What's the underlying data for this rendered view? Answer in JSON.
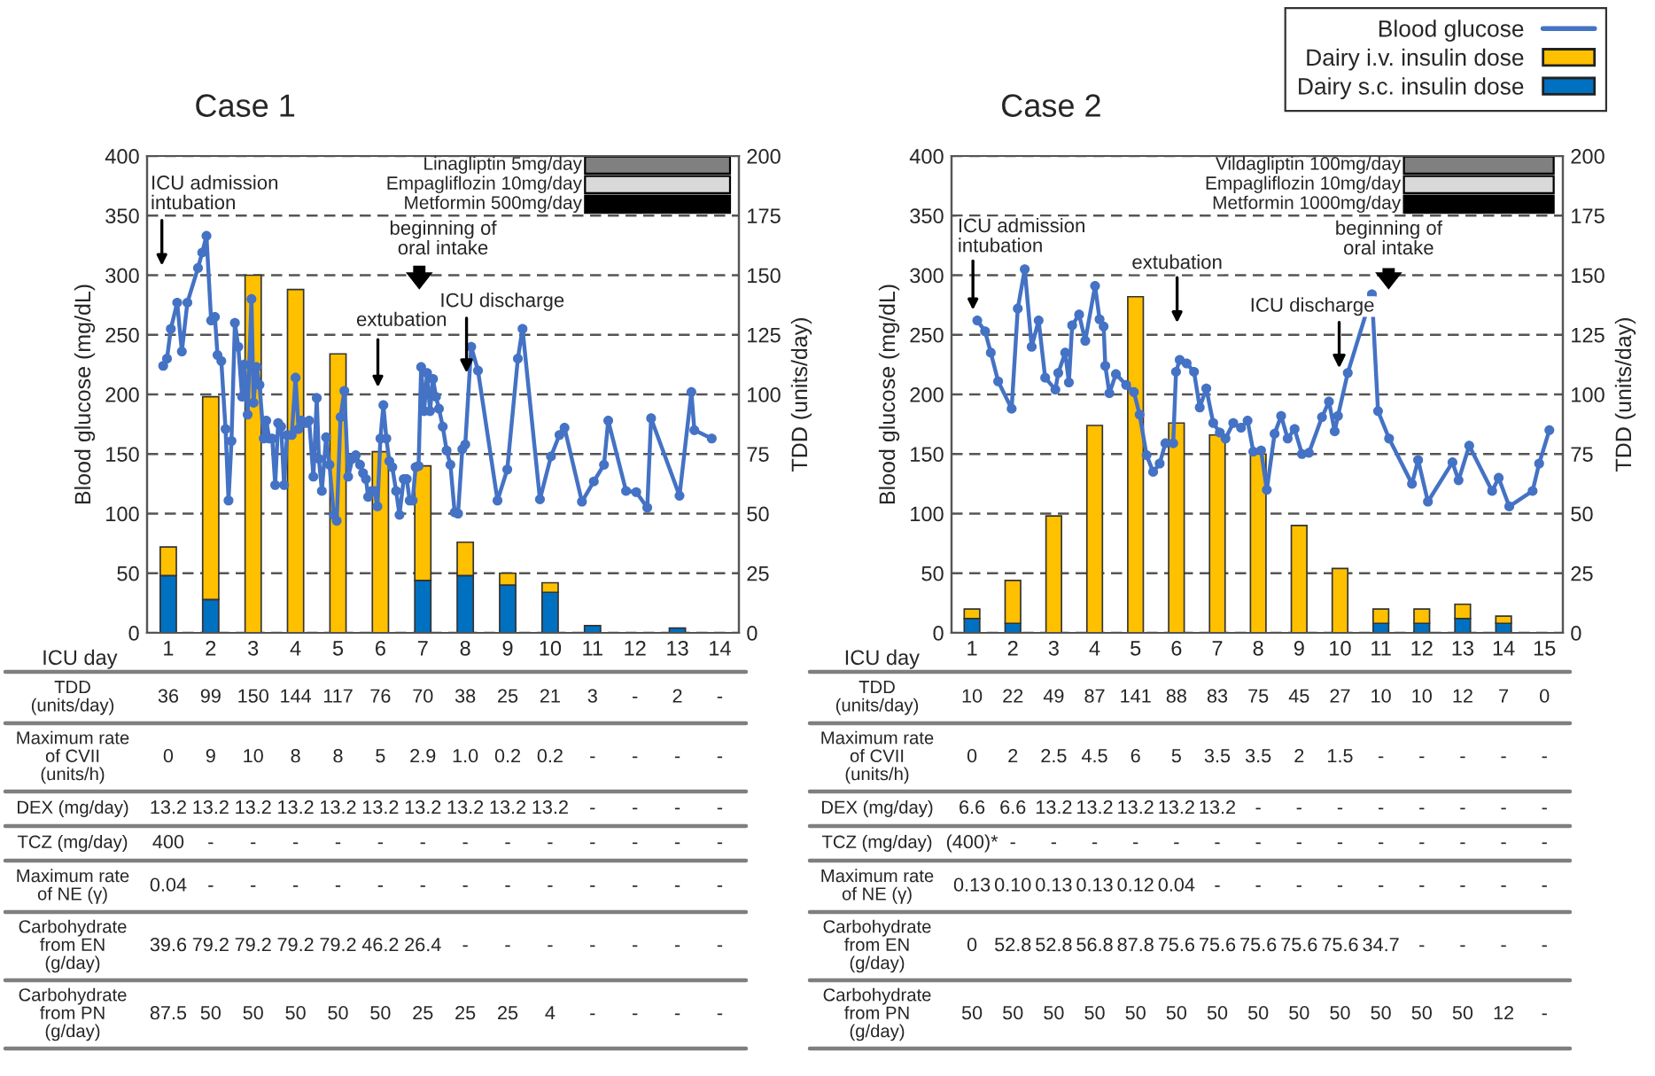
{
  "chart_data": [
    {
      "type": "bar",
      "title": "Case 1",
      "xlabel": "ICU day",
      "ylabel": "Blood glucose (mg/dL)",
      "y2label": "TDD (units/day)",
      "x": [
        1,
        2,
        3,
        4,
        5,
        6,
        7,
        8,
        9,
        10,
        11,
        12,
        13,
        14
      ],
      "xlim": [
        0.5,
        14.45
      ],
      "xticks": [
        1,
        2,
        3,
        4,
        5,
        6,
        7,
        8,
        9,
        10,
        11,
        12,
        13,
        14
      ],
      "ylim": [
        0,
        400
      ],
      "yticks": [
        0,
        50,
        100,
        150,
        200,
        250,
        300,
        350,
        400
      ],
      "y2lim": [
        0,
        200
      ],
      "y2ticks": [
        0,
        25,
        50,
        75,
        100,
        125,
        150,
        175,
        200
      ],
      "stacked": true,
      "grid": "y",
      "marker": "circle",
      "series": [
        {
          "type": "bar",
          "axis": "y2",
          "color": "#0070c0",
          "values": [
            24,
            14,
            null,
            null,
            null,
            null,
            22,
            24,
            20,
            17,
            3,
            null,
            2,
            0
          ]
        },
        {
          "type": "bar",
          "axis": "y2",
          "color": "#ffc000",
          "values": [
            12,
            85,
            150,
            144,
            117,
            76,
            48,
            14,
            5,
            4,
            null,
            null,
            null,
            null
          ]
        },
        {
          "type": "line",
          "color": "#4472c4",
          "x": [
            0.88,
            0.97,
            1.06,
            1.21,
            1.32,
            1.45,
            1.7,
            1.8,
            1.9,
            2.01,
            2.1,
            2.16,
            2.25,
            2.35,
            2.42,
            2.49,
            2.57,
            2.65,
            2.74,
            2.79,
            2.87,
            2.96,
            3.01,
            3.08,
            3.15,
            3.25,
            3.31,
            3.38,
            3.45,
            3.52,
            3.59,
            3.66,
            3.73,
            3.8,
            3.91,
            4.0,
            4.07,
            4.14,
            4.24,
            4.32,
            4.42,
            4.5,
            4.55,
            4.62,
            4.72,
            4.8,
            4.9,
            4.97,
            5.06,
            5.15,
            5.24,
            5.34,
            5.42,
            5.52,
            5.59,
            5.66,
            5.71,
            5.79,
            5.86,
            5.93,
            6.0,
            6.07,
            6.14,
            6.21,
            6.28,
            6.37,
            6.45,
            6.55,
            6.62,
            6.69,
            6.76,
            6.83,
            6.9,
            6.96,
            7.03,
            7.1,
            7.17,
            7.24,
            7.31,
            7.38,
            7.47,
            7.56,
            7.65,
            7.75,
            7.83,
            7.93,
            8.0,
            8.14,
            8.3,
            8.76,
            8.99,
            9.24,
            9.35,
            9.76,
            10.02,
            10.22,
            10.34,
            10.75,
            11.03,
            11.27,
            11.37,
            11.79,
            12.03,
            12.29,
            12.38,
            13.05,
            13.33,
            13.4,
            13.81
          ],
          "values": [
            224,
            230,
            255,
            277,
            236,
            277,
            306,
            319,
            333,
            262,
            265,
            233,
            228,
            171,
            111,
            161,
            260,
            240,
            198,
            225,
            183,
            280,
            193,
            223,
            208,
            163,
            178,
            163,
            163,
            124,
            176,
            173,
            124,
            166,
            166,
            214,
            171,
            178,
            176,
            178,
            131,
            197,
            146,
            119,
            164,
            141,
            99,
            94,
            181,
            203,
            131,
            146,
            149,
            141,
            134,
            129,
            114,
            119,
            119,
            106,
            163,
            191,
            163,
            144,
            139,
            119,
            99,
            129,
            129,
            111,
            111,
            139,
            140,
            223,
            186,
            218,
            186,
            213,
            198,
            188,
            173,
            153,
            141,
            101,
            100,
            154,
            158,
            240,
            220,
            111,
            137,
            230,
            255,
            112,
            148,
            166,
            172,
            110,
            127,
            141,
            178,
            119,
            118,
            105,
            180,
            115,
            202,
            170,
            163
          ]
        }
      ],
      "annotations": [
        "ICU admission\nintubation",
        "extubation",
        "beginning of\noral intake",
        {
          "text": "ICU discharge",
          "x": 8.03,
          "y": 218
        },
        "Linagliptin 5mg/day",
        "Empagliflozin 10mg/day",
        "Metformin 500mg/day"
      ]
    },
    {
      "type": "bar",
      "title": "Case 2",
      "xlabel": "ICU day",
      "ylabel": "Blood glucose (mg/dL)",
      "y2label": "TDD (units/day)",
      "x": [
        1,
        2,
        3,
        4,
        5,
        6,
        7,
        8,
        9,
        10,
        11,
        12,
        13,
        14,
        15
      ],
      "xlim": [
        0.5,
        15.45
      ],
      "xticks": [
        1,
        2,
        3,
        4,
        5,
        6,
        7,
        8,
        9,
        10,
        11,
        12,
        13,
        14,
        15
      ],
      "ylim": [
        0,
        400
      ],
      "yticks": [
        0,
        50,
        100,
        150,
        200,
        250,
        300,
        350,
        400
      ],
      "y2lim": [
        0,
        200
      ],
      "y2ticks": [
        0,
        25,
        50,
        75,
        100,
        125,
        150,
        175,
        200
      ],
      "stacked": true,
      "grid": "y",
      "marker": "circle",
      "legend": "top right",
      "series": [
        {
          "type": "bar",
          "axis": "y2",
          "name": "Dairy s.c. insulin dose",
          "color": "#0070c0",
          "values": [
            6,
            4,
            null,
            null,
            null,
            null,
            null,
            null,
            null,
            null,
            4,
            4,
            6,
            4,
            0
          ]
        },
        {
          "type": "bar",
          "axis": "y2",
          "name": "Dairy i.v. insulin dose",
          "color": "#ffc000",
          "values": [
            4,
            18,
            49,
            87,
            141,
            88,
            83,
            75,
            45,
            27,
            6,
            6,
            6,
            3,
            null
          ]
        },
        {
          "type": "line",
          "name": "Blood glucose",
          "color": "#4472c4",
          "x": [
            1.13,
            1.32,
            1.46,
            1.64,
            1.97,
            2.12,
            2.29,
            2.46,
            2.63,
            2.79,
            3.04,
            3.11,
            3.28,
            3.37,
            3.45,
            3.62,
            3.77,
            4.01,
            4.12,
            4.22,
            4.26,
            4.36,
            4.52,
            4.77,
            4.96,
            5.1,
            5.27,
            5.43,
            5.59,
            5.73,
            5.92,
            5.99,
            6.08,
            6.25,
            6.43,
            6.57,
            6.73,
            6.9,
            7.06,
            7.2,
            7.39,
            7.58,
            7.74,
            7.88,
            8.07,
            8.21,
            8.4,
            8.56,
            8.72,
            8.89,
            9.07,
            9.24,
            9.56,
            9.73,
            9.87,
            9.95,
            10.19,
            10.78,
            10.93,
            11.2,
            11.76,
            11.91,
            12.15,
            12.75,
            12.9,
            13.16,
            13.72,
            13.88,
            14.14,
            14.71,
            14.87,
            15.12
          ],
          "values": [
            262,
            253,
            235,
            211,
            188,
            272,
            305,
            240,
            262,
            214,
            204,
            218,
            235,
            210,
            258,
            267,
            245,
            291,
            263,
            257,
            224,
            201,
            217,
            208,
            202,
            183,
            149,
            135,
            142,
            159,
            159,
            219,
            229,
            226,
            219,
            189,
            205,
            176,
            168,
            163,
            176,
            172,
            178,
            152,
            153,
            120,
            167,
            182,
            163,
            171,
            150,
            151,
            181,
            194,
            169,
            182,
            218,
            284,
            186,
            163,
            125,
            145,
            110,
            143,
            128,
            157,
            119,
            130,
            106,
            119,
            142,
            170
          ]
        }
      ],
      "annotations": [
        "ICU admission\nintubation",
        "extubation",
        {
          "text": "ICU discharge",
          "x": 9.98,
          "y": 222
        },
        "beginning of\noral intake",
        "Vildagliptin 100mg/day",
        "Empagliflozin 10mg/day",
        "Metformin 1000mg/day"
      ]
    },
    {
      "type": "other",
      "annotations": [
        "TDD\n(units/day)",
        "36",
        "99",
        "150",
        "144",
        "117",
        "76",
        "70",
        "38",
        "25",
        "21",
        "3",
        "-",
        "2",
        "-",
        "Maximum rate\nof CVII\n(units/h)",
        "0",
        "9",
        "10",
        "8",
        "8",
        "5",
        "2.9",
        "1.0",
        "0.2",
        "0.2",
        "-",
        "-",
        "-",
        "-",
        "DEX (mg/day)",
        "13.2",
        "13.2",
        "13.2",
        "13.2",
        "13.2",
        "13.2",
        "13.2",
        "13.2",
        "13.2",
        "13.2",
        "-",
        "-",
        "-",
        "-",
        "TCZ (mg/day)",
        "400",
        "-",
        "-",
        "-",
        "-",
        "-",
        "-",
        "-",
        "-",
        "-",
        "-",
        "-",
        "-",
        "-",
        "Maximum rate\nof NE (γ)",
        "0.04",
        "-",
        "-",
        "-",
        "-",
        "-",
        "-",
        "-",
        "-",
        "-",
        "-",
        "-",
        "-",
        "-",
        "Carbohydrate\nfrom EN\n(g/day)",
        "39.6",
        "79.2",
        "79.2",
        "79.2",
        "79.2",
        "46.2",
        "26.4",
        "-",
        "-",
        "-",
        "-",
        "-",
        "-",
        "-",
        "Carbohydrate\nfrom PN\n(g/day)",
        "87.5",
        "50",
        "50",
        "50",
        "50",
        "50",
        "25",
        "25",
        "25",
        "4",
        "-",
        "-",
        "-",
        "-"
      ]
    },
    {
      "type": "other",
      "annotations": [
        "TDD\n(units/day)",
        "10",
        "22",
        "49",
        "87",
        "141",
        "88",
        "83",
        "75",
        "45",
        "27",
        "10",
        "10",
        "12",
        "7",
        "0",
        "Maximum rate\nof CVII\n(units/h)",
        "0",
        "2",
        "2.5",
        "4.5",
        "6",
        "5",
        "3.5",
        "3.5",
        "2",
        "1.5",
        "-",
        "-",
        "-",
        "-",
        "-",
        "DEX (mg/day)",
        "6.6",
        "6.6",
        "13.2",
        "13.2",
        "13.2",
        "13.2",
        "13.2",
        "-",
        "-",
        "-",
        "-",
        "-",
        "-",
        "-",
        "-",
        "TCZ (mg/day)",
        "(400)*",
        "-",
        "-",
        "-",
        "-",
        "-",
        "-",
        "-",
        "-",
        "-",
        "-",
        "-",
        "-",
        "-",
        "-",
        "Maximum rate\nof NE (γ)",
        "0.13",
        "0.10",
        "0.13",
        "0.13",
        "0.12",
        "0.04",
        "-",
        "-",
        "-",
        "-",
        "-",
        "-",
        "-",
        "-",
        "-",
        "Carbohydrate\nfrom EN\n(g/day)",
        "0",
        "52.8",
        "52.8",
        "56.8",
        "87.8",
        "75.6",
        "75.6",
        "75.6",
        "75.6",
        "75.6",
        "34.7",
        "-",
        "-",
        "-",
        "-",
        "Carbohydrate\nfrom PN\n(g/day)",
        "50",
        "50",
        "50",
        "50",
        "50",
        "50",
        "50",
        "50",
        "50",
        "50",
        "50",
        "50",
        "50",
        "12",
        "-"
      ]
    }
  ]
}
